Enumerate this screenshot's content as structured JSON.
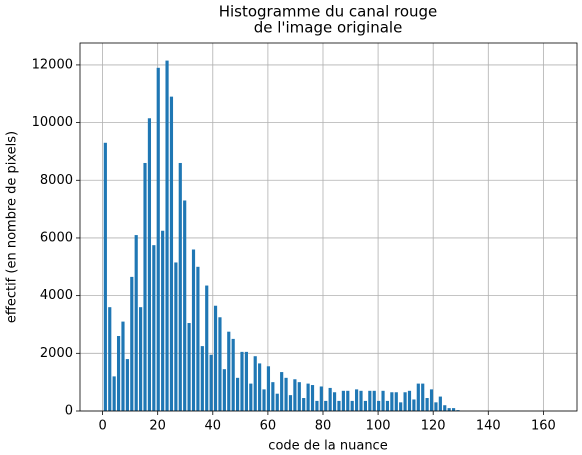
{
  "chart_data": {
    "type": "bar",
    "title": [
      "Histogramme du canal rouge",
      "de l'image originale"
    ],
    "xlabel": "code de la nuance",
    "ylabel": "effectif (en nombre de pixels)",
    "color": "#1f77b4",
    "grid": true,
    "xlim": [
      -8.2,
      172.2
    ],
    "ylim": [
      0,
      12760
    ],
    "xticks": [
      0,
      20,
      40,
      60,
      80,
      100,
      120,
      140,
      160
    ],
    "yticks": [
      0,
      2000,
      4000,
      6000,
      8000,
      10000,
      12000
    ],
    "x": [
      1,
      2.6,
      4.2,
      5.8,
      7.4,
      9,
      10.6,
      12.2,
      13.8,
      15.4,
      17,
      18.6,
      20.2,
      21.8,
      23.4,
      25,
      26.6,
      28.2,
      29.8,
      31.4,
      33,
      34.6,
      36.2,
      37.8,
      39.4,
      41,
      42.6,
      44.2,
      45.8,
      47.4,
      49,
      50.6,
      52.2,
      53.8,
      55.4,
      57,
      58.6,
      60.2,
      61.8,
      63.4,
      65,
      66.6,
      68.2,
      69.8,
      71.4,
      73,
      74.6,
      76.2,
      77.8,
      79.4,
      81,
      82.6,
      84.2,
      85.8,
      87.4,
      89,
      90.6,
      92.2,
      93.8,
      95.4,
      97,
      98.6,
      100.2,
      101.8,
      103.4,
      105,
      106.6,
      108.2,
      109.8,
      111.4,
      113,
      114.6,
      116.2,
      117.8,
      119.4,
      121,
      122.6,
      124.2,
      125.8,
      127.4,
      129
    ],
    "values": [
      9300,
      3600,
      1200,
      2600,
      3100,
      1800,
      4650,
      6100,
      3600,
      8600,
      10150,
      5750,
      11900,
      6250,
      12150,
      10900,
      5150,
      8600,
      7300,
      3050,
      5600,
      5000,
      2250,
      4350,
      1950,
      3650,
      3250,
      1450,
      2750,
      2500,
      1150,
      2050,
      2050,
      950,
      1900,
      1650,
      750,
      1550,
      1000,
      600,
      1350,
      1150,
      550,
      1100,
      1000,
      450,
      950,
      900,
      350,
      850,
      350,
      800,
      650,
      350,
      700,
      700,
      350,
      750,
      700,
      350,
      700,
      700,
      350,
      700,
      350,
      650,
      650,
      300,
      650,
      700,
      400,
      950,
      950,
      450,
      750,
      300,
      500,
      200,
      100,
      100,
      30
    ]
  }
}
